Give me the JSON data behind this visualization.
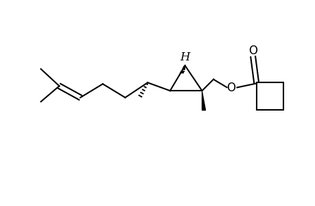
{
  "background": "#ffffff",
  "line_color": "#000000",
  "line_width": 1.5,
  "figsize": [
    4.6,
    3.0
  ],
  "dpi": 100,
  "xlim": [
    0,
    46
  ],
  "ylim": [
    0,
    30
  ]
}
